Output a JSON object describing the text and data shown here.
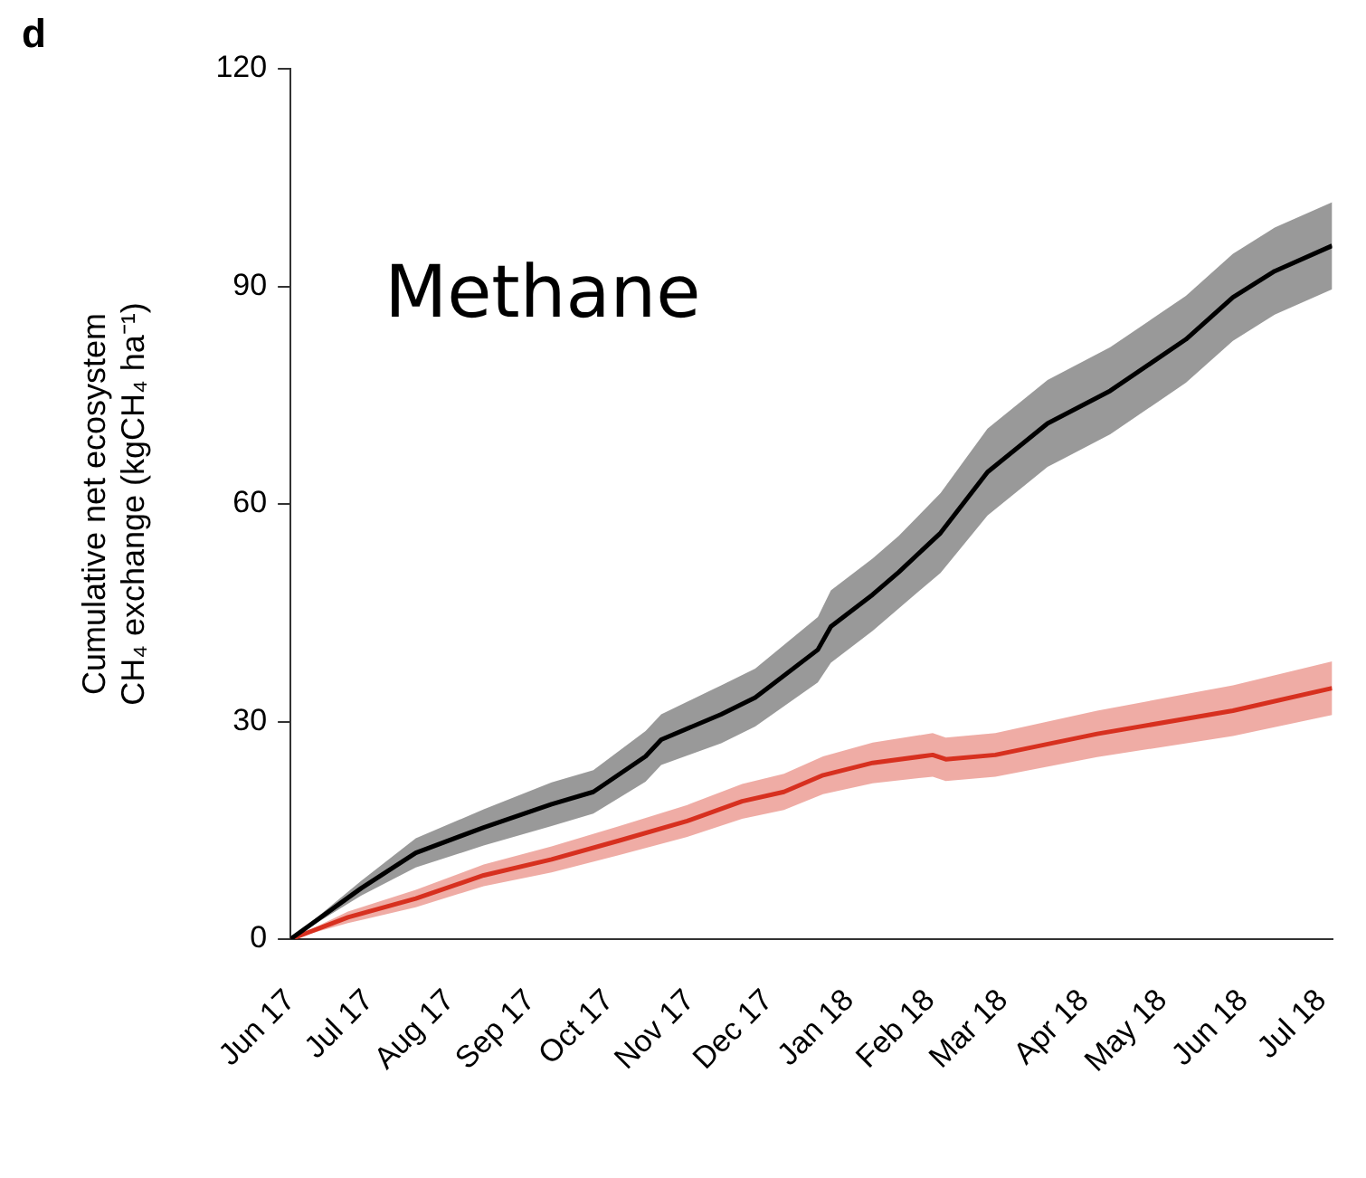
{
  "chart_data": {
    "type": "line",
    "ylabel": "Cumulative net ecosystem\nCH₄ exchange (kgCH₄ ha⁻¹)",
    "annotations": [
      "d",
      "Methane"
    ],
    "xlim": [
      "2017-06-01",
      "2018-07-05"
    ],
    "xticks": [
      {
        "value": "2017-06-01",
        "label": "Jun 17"
      },
      {
        "value": "2017-07-01",
        "label": "Jul 17"
      },
      {
        "value": "2017-08-01",
        "label": "Aug 17"
      },
      {
        "value": "2017-09-01",
        "label": "Sep 17"
      },
      {
        "value": "2017-10-01",
        "label": "Oct 17"
      },
      {
        "value": "2017-11-01",
        "label": "Nov 17"
      },
      {
        "value": "2017-12-01",
        "label": "Dec 17"
      },
      {
        "value": "2018-01-01",
        "label": "Jan 18"
      },
      {
        "value": "2018-02-01",
        "label": "Feb 18"
      },
      {
        "value": "2018-03-01",
        "label": "Mar 18"
      },
      {
        "value": "2018-04-01",
        "label": "Apr 18"
      },
      {
        "value": "2018-05-01",
        "label": "May 18"
      },
      {
        "value": "2018-06-01",
        "label": "Jun 18"
      },
      {
        "value": "2018-07-01",
        "label": "Jul 18"
      }
    ],
    "ylim": [
      0,
      120
    ],
    "yticks": [
      0,
      30,
      60,
      90,
      120
    ],
    "grid": false,
    "legend": false,
    "series": [
      {
        "color": "#000000",
        "x": [
          "2017-06-01",
          "2017-06-28",
          "2017-07-19",
          "2017-08-14",
          "2017-09-09",
          "2017-09-25",
          "2017-10-15",
          "2017-10-21",
          "2017-11-13",
          "2017-11-26",
          "2017-12-20",
          "2017-12-25",
          "2018-01-10",
          "2018-01-20",
          "2018-02-05",
          "2018-02-23",
          "2018-03-18",
          "2018-04-11",
          "2018-05-10",
          "2018-05-28",
          "2018-06-13",
          "2018-07-05"
        ],
        "values": [
          0,
          7.0,
          11.9,
          15.4,
          18.6,
          20.3,
          25.2,
          27.5,
          31.0,
          33.3,
          39.9,
          43.1,
          47.5,
          50.6,
          56.0,
          64.4,
          71.1,
          75.6,
          82.7,
          88.5,
          92.1,
          95.6
        ],
        "lower": [
          0,
          6.0,
          9.9,
          12.9,
          15.6,
          17.3,
          21.7,
          24.0,
          27.0,
          29.3,
          35.4,
          38.1,
          42.5,
          45.6,
          50.5,
          58.4,
          65.1,
          69.6,
          76.7,
          82.5,
          86.1,
          89.6
        ],
        "upper": [
          0,
          8.0,
          13.9,
          17.9,
          21.6,
          23.3,
          28.7,
          31.0,
          35.0,
          37.3,
          44.4,
          48.1,
          52.5,
          55.6,
          61.5,
          70.4,
          77.1,
          81.6,
          88.7,
          94.5,
          98.1,
          101.6
        ]
      },
      {
        "color": "#d7301f",
        "x": [
          "2017-06-01",
          "2017-06-23",
          "2017-07-19",
          "2017-08-14",
          "2017-09-09",
          "2017-10-05",
          "2017-10-31",
          "2017-11-21",
          "2017-12-07",
          "2017-12-22",
          "2018-01-10",
          "2018-02-02",
          "2018-02-07",
          "2018-02-26",
          "2018-04-06",
          "2018-05-28",
          "2018-07-05"
        ],
        "values": [
          0,
          3.0,
          5.6,
          8.8,
          11.0,
          13.6,
          16.3,
          19.0,
          20.3,
          22.6,
          24.3,
          25.4,
          24.8,
          25.4,
          28.3,
          31.5,
          34.6
        ],
        "lower": [
          0,
          2.2,
          4.4,
          7.3,
          9.2,
          11.6,
          14.1,
          16.6,
          17.8,
          20.0,
          21.5,
          22.4,
          21.8,
          22.4,
          25.1,
          28.0,
          30.9
        ],
        "upper": [
          0,
          3.8,
          6.8,
          10.3,
          12.8,
          15.6,
          18.5,
          21.4,
          22.8,
          25.2,
          27.1,
          28.4,
          27.8,
          28.4,
          31.5,
          35.0,
          38.3
        ]
      }
    ]
  }
}
